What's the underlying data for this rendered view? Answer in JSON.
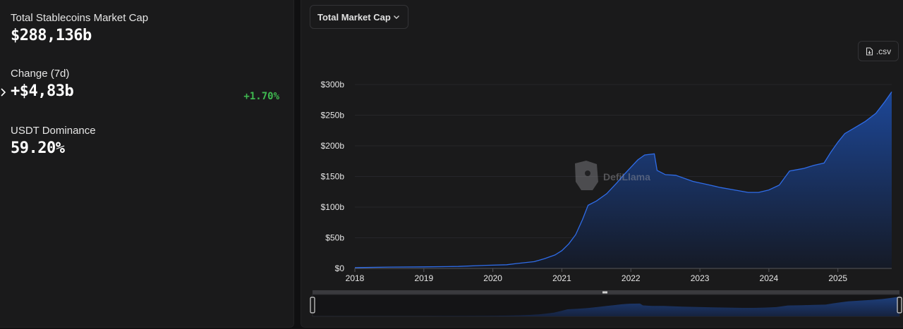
{
  "stats": {
    "market_cap": {
      "label": "Total Stablecoins Market Cap",
      "value": "$288,136b"
    },
    "change": {
      "label": "Change (7d)",
      "value": "+$4,83b",
      "percent": "+1.70%"
    },
    "dominance": {
      "label": "USDT Dominance",
      "value": "59.20%"
    }
  },
  "chart_controls": {
    "metric_dropdown": "Total Market Cap",
    "csv_button": ".csv"
  },
  "watermark": "DefiLlama",
  "colors": {
    "line": "#2f6ce8",
    "fill_top": "#1d4797",
    "fill_bottom": "#151a26",
    "positive": "#3fb950"
  },
  "chart_data": {
    "type": "area",
    "title": "",
    "xlabel": "",
    "ylabel": "",
    "y_tick_labels": [
      "$0",
      "$50b",
      "$100b",
      "$150b",
      "$200b",
      "$250b",
      "$300b"
    ],
    "y_ticks": [
      0,
      50,
      100,
      150,
      200,
      250,
      300
    ],
    "x_tick_labels": [
      "2018",
      "2019",
      "2020",
      "2021",
      "2022",
      "2023",
      "2024",
      "2025"
    ],
    "x_ticks": [
      2018,
      2019,
      2020,
      2021,
      2022,
      2023,
      2024,
      2025
    ],
    "ylim": [
      0,
      300
    ],
    "xlim": [
      2018.0,
      2025.78
    ],
    "grid": "horizontal",
    "series": [
      {
        "points": [
          [
            2018.0,
            1.3
          ],
          [
            2018.5,
            2.2
          ],
          [
            2019.0,
            2.5
          ],
          [
            2019.5,
            3.2
          ],
          [
            2019.9,
            5.0
          ],
          [
            2020.2,
            6.0
          ],
          [
            2020.35,
            8.0
          ],
          [
            2020.6,
            11.0
          ],
          [
            2020.75,
            16.0
          ],
          [
            2020.9,
            22.0
          ],
          [
            2021.0,
            29.0
          ],
          [
            2021.1,
            40.0
          ],
          [
            2021.2,
            55.0
          ],
          [
            2021.3,
            80.0
          ],
          [
            2021.38,
            103.0
          ],
          [
            2021.5,
            110.0
          ],
          [
            2021.65,
            122.0
          ],
          [
            2021.8,
            140.0
          ],
          [
            2021.9,
            153.0
          ],
          [
            2022.0,
            165.0
          ],
          [
            2022.1,
            177.0
          ],
          [
            2022.2,
            185.0
          ],
          [
            2022.34,
            187.0
          ],
          [
            2022.38,
            160.0
          ],
          [
            2022.5,
            153.0
          ],
          [
            2022.65,
            152.0
          ],
          [
            2022.9,
            142.0
          ],
          [
            2023.1,
            137.0
          ],
          [
            2023.3,
            132.0
          ],
          [
            2023.5,
            128.0
          ],
          [
            2023.7,
            124.0
          ],
          [
            2023.85,
            124.0
          ],
          [
            2024.0,
            128.0
          ],
          [
            2024.15,
            136.0
          ],
          [
            2024.3,
            159.0
          ],
          [
            2024.5,
            163.0
          ],
          [
            2024.65,
            168.0
          ],
          [
            2024.8,
            172.0
          ],
          [
            2024.9,
            190.0
          ],
          [
            2025.0,
            206.0
          ],
          [
            2025.1,
            220.0
          ],
          [
            2025.25,
            230.0
          ],
          [
            2025.4,
            240.0
          ],
          [
            2025.55,
            253.0
          ],
          [
            2025.68,
            272.0
          ],
          [
            2025.78,
            288.0
          ]
        ]
      }
    ]
  }
}
